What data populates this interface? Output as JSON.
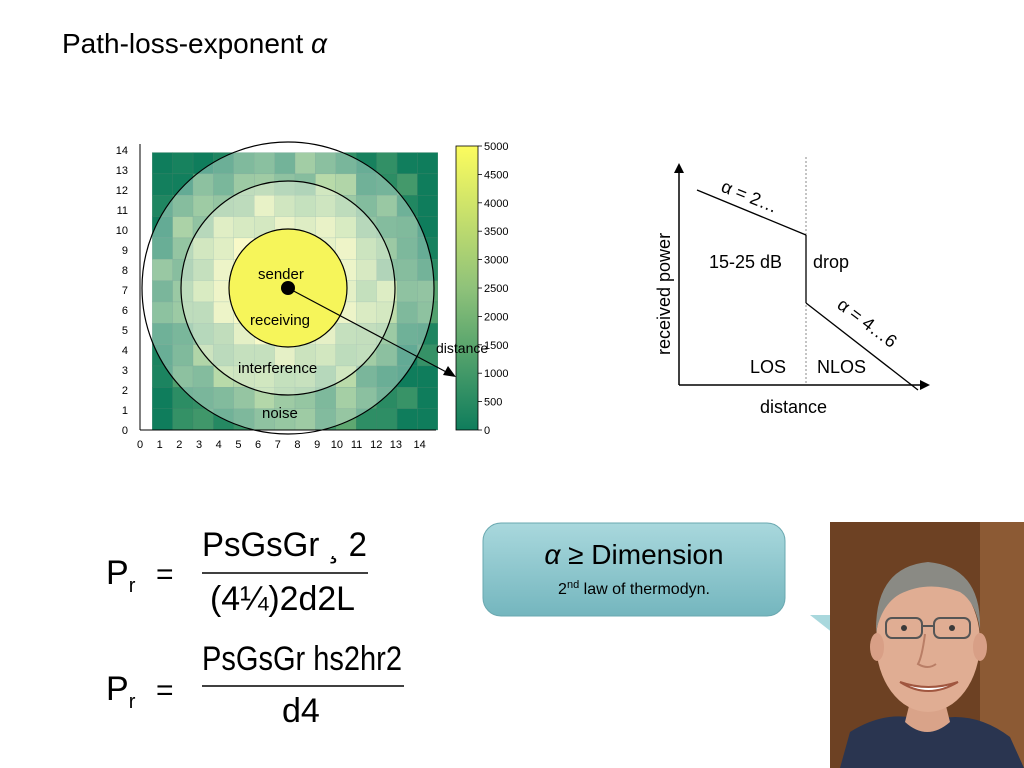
{
  "title": {
    "text": "Path-loss-exponent",
    "symbol": "α"
  },
  "heatmap": {
    "x_ticks": [
      "0",
      "1",
      "2",
      "3",
      "4",
      "5",
      "6",
      "7",
      "8",
      "9",
      "10",
      "11",
      "12",
      "13",
      "14"
    ],
    "y_ticks": [
      "0",
      "1",
      "2",
      "3",
      "4",
      "5",
      "6",
      "7",
      "8",
      "9",
      "10",
      "11",
      "12",
      "13",
      "14"
    ],
    "colorbar_ticks": [
      "0",
      "500",
      "1000",
      "1500",
      "2000",
      "2500",
      "3000",
      "3500",
      "4000",
      "4500",
      "5000"
    ],
    "labels": {
      "sender": "sender",
      "receiving": "receiving",
      "interference": "interference",
      "noise": "noise",
      "distance": "distance"
    },
    "colors": {
      "low": "#1a8a62",
      "mid": "#8fc27a",
      "high": "#fbfb62"
    }
  },
  "power_chart": {
    "ylabel": "received power",
    "xlabel": "distance",
    "drop_value": "15-25 dB",
    "drop_word": "drop",
    "alpha_los": "α = 2…",
    "alpha_nlos": "α = 4…6",
    "los": "LOS",
    "nlos": "NLOS"
  },
  "equations": {
    "eq1": {
      "lhs": "P",
      "lhs_sub": "r",
      "equals": "=",
      "num": "PsGsGr ¸ 2",
      "den": "(4¼)2d2L"
    },
    "eq2": {
      "lhs": "P",
      "lhs_sub": "r",
      "equals": "=",
      "num": "PsGsGr hs2hr2",
      "den": "d4"
    }
  },
  "callout": {
    "line1_symbol": "α",
    "line1_rest": "≥ Dimension",
    "line2_sup": "nd",
    "line2_num": "2",
    "line2_rest": "law of thermodyn."
  }
}
